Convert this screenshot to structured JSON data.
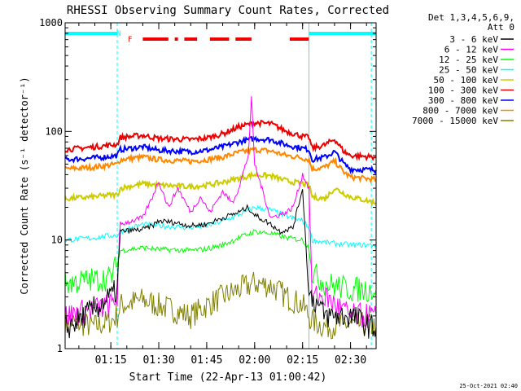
{
  "chart_data": {
    "type": "line",
    "title": "RHESSI Observing Summary Count Rates, Corrected",
    "xlabel": "Start Time (22-Apr-13 01:00:42)",
    "ylabel": "Corrected Count Rate (s⁻¹ detector⁻¹)",
    "y_scale": "log",
    "ylim": [
      1,
      1000
    ],
    "y_ticks": [
      {
        "value": 1,
        "label": "1"
      },
      {
        "value": 10,
        "label": "10"
      },
      {
        "value": 100,
        "label": "100"
      },
      {
        "value": 1000,
        "label": "1000"
      }
    ],
    "xlim": [
      "01:00:42",
      "02:38:00"
    ],
    "x_ticks": [
      "01:15",
      "01:30",
      "01:45",
      "02:00",
      "02:15",
      "02:30"
    ],
    "legend_header": [
      "Det 1,3,4,5,6,9,",
      "Att 0"
    ],
    "legend_placement": "right",
    "series": [
      {
        "name": "3 - 6 keV",
        "color": "#000000",
        "x": [
          "01:00:42",
          "01:15",
          "01:17",
          "01:18",
          "01:25",
          "01:28",
          "01:30",
          "01:35",
          "01:40",
          "01:45",
          "01:50",
          "01:55",
          "01:58",
          "02:00",
          "02:05",
          "02:08",
          "02:12",
          "02:15",
          "02:17",
          "02:18",
          "02:22",
          "02:30",
          "02:38"
        ],
        "y": [
          1.5,
          3,
          3.5,
          12,
          12.5,
          13.5,
          15,
          14.5,
          13.5,
          14,
          16,
          18,
          20,
          17,
          14,
          12,
          13,
          30,
          3,
          3,
          2,
          2,
          1.5
        ]
      },
      {
        "name": "6 - 12 keV",
        "color": "#ff00ff",
        "x": [
          "01:00:42",
          "01:15",
          "01:17",
          "01:18",
          "01:25",
          "01:28",
          "01:30",
          "01:33",
          "01:36",
          "01:40",
          "01:43",
          "01:46",
          "01:50",
          "01:53",
          "01:55",
          "01:58",
          "01:59",
          "02:00",
          "02:05",
          "02:10",
          "02:12",
          "02:15",
          "02:17",
          "02:18",
          "02:22",
          "02:30",
          "02:38"
        ],
        "y": [
          2,
          2.5,
          3,
          14,
          16,
          25,
          35,
          20,
          30,
          18,
          25,
          18,
          28,
          22,
          30,
          60,
          200,
          50,
          16,
          18,
          20,
          40,
          30,
          3,
          3,
          2,
          2
        ]
      },
      {
        "name": "12 - 25 keV",
        "color": "#00ff00",
        "x": [
          "01:00:42",
          "01:15",
          "01:17",
          "01:18",
          "01:25",
          "01:30",
          "01:40",
          "01:45",
          "01:50",
          "01:55",
          "02:00",
          "02:05",
          "02:10",
          "02:15",
          "02:17",
          "02:18",
          "02:22",
          "02:30",
          "02:38"
        ],
        "y": [
          4,
          4.5,
          6,
          8,
          8.5,
          8.2,
          8,
          8.3,
          9,
          10.5,
          12,
          11.5,
          10.5,
          10,
          8.5,
          5,
          4,
          3.5,
          3.5
        ]
      },
      {
        "name": "25 - 50 keV",
        "color": "#00ffff",
        "x": [
          "01:00:42",
          "01:10",
          "01:15",
          "01:17",
          "01:18",
          "01:25",
          "01:30",
          "01:40",
          "01:45",
          "01:50",
          "01:55",
          "02:00",
          "02:05",
          "02:10",
          "02:15",
          "02:17",
          "02:18",
          "02:22",
          "02:30",
          "02:38"
        ],
        "y": [
          10,
          10.5,
          11,
          11,
          12,
          14,
          13.5,
          13,
          13.5,
          15,
          17,
          20,
          19,
          16.5,
          15,
          13,
          10,
          9.5,
          9,
          9
        ]
      },
      {
        "name": "50 - 100 keV",
        "color": "#cccc00",
        "x": [
          "01:00:42",
          "01:10",
          "01:15",
          "01:17",
          "01:18",
          "01:25",
          "01:30",
          "01:40",
          "01:45",
          "01:50",
          "01:55",
          "02:00",
          "02:05",
          "02:10",
          "02:15",
          "02:17",
          "02:18",
          "02:22",
          "02:25",
          "02:30",
          "02:38"
        ],
        "y": [
          24,
          25,
          26,
          26,
          30,
          33,
          32,
          31,
          32,
          34,
          37,
          40,
          39,
          35,
          33,
          32,
          25,
          24,
          30,
          25,
          22
        ]
      },
      {
        "name": "100 - 300 keV",
        "color": "#ee0000",
        "x": [
          "01:00:42",
          "01:10",
          "01:15",
          "01:17",
          "01:18",
          "01:25",
          "01:30",
          "01:40",
          "01:45",
          "01:50",
          "01:55",
          "02:00",
          "02:05",
          "02:10",
          "02:15",
          "02:17",
          "02:18",
          "02:22",
          "02:25",
          "02:28",
          "02:30",
          "02:38"
        ],
        "y": [
          68,
          72,
          75,
          76,
          88,
          92,
          86,
          84,
          87,
          95,
          110,
          120,
          118,
          100,
          90,
          88,
          70,
          75,
          85,
          65,
          60,
          58
        ]
      },
      {
        "name": "300 - 800 keV",
        "color": "#0000ff",
        "x": [
          "01:00:42",
          "01:10",
          "01:15",
          "01:17",
          "01:18",
          "01:25",
          "01:30",
          "01:40",
          "01:45",
          "01:50",
          "01:55",
          "02:00",
          "02:05",
          "02:10",
          "02:15",
          "02:17",
          "02:18",
          "02:22",
          "02:25",
          "02:28",
          "02:30",
          "02:38"
        ],
        "y": [
          55,
          57,
          59,
          60,
          68,
          72,
          67,
          65,
          67,
          72,
          80,
          86,
          84,
          75,
          70,
          68,
          55,
          58,
          65,
          50,
          45,
          44
        ]
      },
      {
        "name": "800 - 7000 keV",
        "color": "#ff8800",
        "x": [
          "01:00:42",
          "01:10",
          "01:15",
          "01:17",
          "01:18",
          "01:25",
          "01:30",
          "01:40",
          "01:45",
          "01:50",
          "01:55",
          "02:00",
          "02:05",
          "02:10",
          "02:15",
          "02:17",
          "02:18",
          "02:22",
          "02:25",
          "02:28",
          "02:30",
          "02:38"
        ],
        "y": [
          45,
          47,
          49,
          50,
          55,
          58,
          55,
          53,
          55,
          58,
          64,
          68,
          66,
          60,
          57,
          55,
          45,
          47,
          53,
          42,
          38,
          36
        ]
      },
      {
        "name": "7000 - 15000 keV",
        "color": "#808000",
        "x": [
          "01:00:42",
          "01:10",
          "01:15",
          "01:17",
          "01:18",
          "01:25",
          "01:30",
          "01:40",
          "01:45",
          "01:50",
          "01:55",
          "02:00",
          "02:05",
          "02:10",
          "02:15",
          "02:17",
          "02:18",
          "02:22",
          "02:30",
          "02:38"
        ],
        "y": [
          1.8,
          1.6,
          1.8,
          2,
          2.5,
          2.8,
          2.5,
          2,
          2.5,
          3,
          3.5,
          4,
          3.8,
          3,
          2.5,
          2,
          1.8,
          1.6,
          1.7,
          1.6
        ]
      }
    ],
    "annotations": [
      {
        "text": "N",
        "color": "#00ffff",
        "at": "01:17:30"
      },
      {
        "text": "F",
        "color": "#ee0000",
        "at": "01:21:00"
      }
    ],
    "night_intervals": [
      [
        "01:00:42",
        "01:17:00"
      ],
      [
        "02:17:00",
        "02:38:00"
      ]
    ],
    "flare_intervals": [
      [
        "01:25:00",
        "01:33:00"
      ],
      [
        "01:35:00",
        "01:36:00"
      ],
      [
        "01:38:00",
        "01:42:00"
      ],
      [
        "01:46:00",
        "01:52:00"
      ],
      [
        "01:54:00",
        "01:59:00"
      ],
      [
        "02:11:00",
        "02:17:00"
      ]
    ],
    "vertical_markers": [
      {
        "at": "01:17:00",
        "style": "dashed",
        "color": "#00ffff"
      },
      {
        "at": "02:17:00",
        "style": "solid",
        "color": "#00ffff"
      },
      {
        "at": "02:36:30",
        "style": "dashed",
        "color": "#00ffff"
      },
      {
        "at": "01:00:42",
        "style": "solid",
        "color": "#00ffff"
      }
    ],
    "grid": false
  },
  "footer": {
    "timestamp": "25-Oct-2021 02:40"
  }
}
